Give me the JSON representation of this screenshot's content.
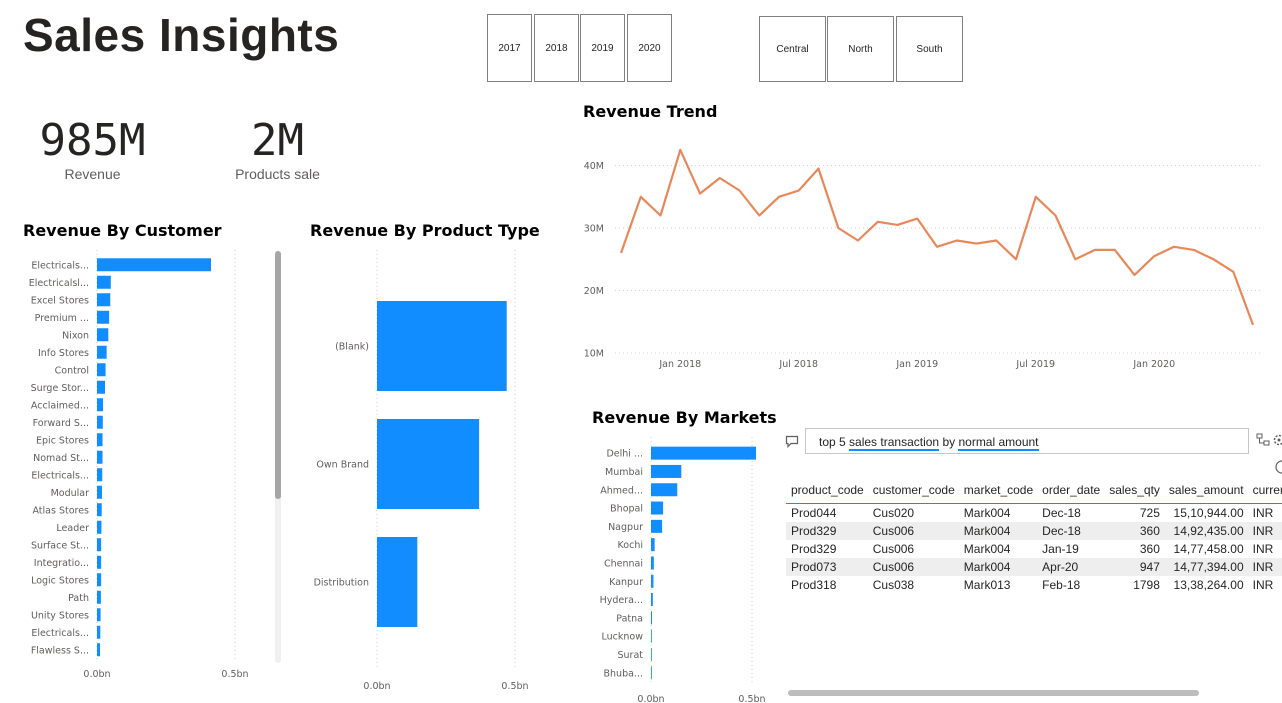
{
  "page_title": "Sales Insights",
  "year_slicer": [
    "2017",
    "2018",
    "2019",
    "2020"
  ],
  "region_slicer": [
    "Central",
    "North",
    "South"
  ],
  "kpis": [
    {
      "value": "985M",
      "label": "Revenue"
    },
    {
      "value": "2M",
      "label": "Products sale"
    }
  ],
  "colors": {
    "bar": "#118dff",
    "line": "#e8875a",
    "grid": "#d0d0d0"
  },
  "qa": {
    "parts": [
      "top 5",
      "sales transaction",
      "by",
      "normal amount"
    ],
    "icons": [
      "chat-icon",
      "share-icon",
      "settings-icon"
    ]
  },
  "table": {
    "headers": [
      "product_code",
      "customer_code",
      "market_code",
      "order_date",
      "sales_qty",
      "sales_amount",
      "currency"
    ],
    "rows": [
      [
        "Prod044",
        "Cus020",
        "Mark004",
        "Dec-18",
        "725",
        "15,10,944.00",
        "INR"
      ],
      [
        "Prod329",
        "Cus006",
        "Mark004",
        "Dec-18",
        "360",
        "14,92,435.00",
        "INR"
      ],
      [
        "Prod329",
        "Cus006",
        "Mark004",
        "Jan-19",
        "360",
        "14,77,458.00",
        "INR"
      ],
      [
        "Prod073",
        "Cus006",
        "Mark004",
        "Apr-20",
        "947",
        "14,77,394.00",
        "INR"
      ],
      [
        "Prod318",
        "Cus038",
        "Mark013",
        "Feb-18",
        "1798",
        "13,38,264.00",
        "INR"
      ]
    ]
  },
  "chart_data": [
    {
      "id": "customer",
      "type": "bar",
      "title": "Revenue By Customer",
      "orientation": "horizontal",
      "categories": [
        "Electricals...",
        "Electricalsl...",
        "Excel Stores",
        "Premium ...",
        "Nixon",
        "Info Stores",
        "Control",
        "Surge Stor...",
        "Acclaimed...",
        "Forward S...",
        "Epic Stores",
        "Nomad St...",
        "Electricals...",
        "Modular",
        "Atlas Stores",
        "Leader",
        "Surface St...",
        "Integratio...",
        "Logic Stores",
        "Path",
        "Unity Stores",
        "Electricals...",
        "Flawless S..."
      ],
      "values": [
        0.413,
        0.05,
        0.048,
        0.044,
        0.041,
        0.035,
        0.031,
        0.029,
        0.022,
        0.021,
        0.02,
        0.02,
        0.019,
        0.018,
        0.017,
        0.016,
        0.015,
        0.015,
        0.015,
        0.014,
        0.013,
        0.012,
        0.011
      ],
      "unit": "bn",
      "xlim": [
        0,
        0.5
      ],
      "ticks": [
        "0.0bn",
        "0.5bn"
      ],
      "grid": true
    },
    {
      "id": "product_type",
      "type": "bar",
      "title": "Revenue By Product Type",
      "orientation": "horizontal",
      "categories": [
        "(Blank)",
        "Own Brand",
        "Distribution"
      ],
      "values": [
        0.47,
        0.37,
        0.146
      ],
      "unit": "bn",
      "xlim": [
        0,
        0.5
      ],
      "ticks": [
        "0.0bn",
        "0.5bn"
      ],
      "grid": true
    },
    {
      "id": "markets",
      "type": "bar",
      "title": "Revenue By Markets",
      "orientation": "horizontal",
      "categories": [
        "Delhi ...",
        "Mumbai",
        "Ahmed...",
        "Bhopal",
        "Nagpur",
        "Kochi",
        "Chennai",
        "Kanpur",
        "Hydera...",
        "Patna",
        "Lucknow",
        "Surat",
        "Bhuba..."
      ],
      "values": [
        0.52,
        0.15,
        0.13,
        0.06,
        0.055,
        0.018,
        0.014,
        0.012,
        0.009,
        0.005,
        0.004,
        0.004,
        0.003
      ],
      "unit": "bn",
      "xlim": [
        0,
        0.5
      ],
      "ticks": [
        "0.0bn",
        "0.5bn"
      ],
      "grid": true
    },
    {
      "id": "trend",
      "type": "line",
      "title": "Revenue Trend",
      "x": [
        "2017-10",
        "2017-11",
        "2017-12",
        "2018-01",
        "2018-02",
        "2018-03",
        "2018-04",
        "2018-05",
        "2018-06",
        "2018-07",
        "2018-08",
        "2018-09",
        "2018-10",
        "2018-11",
        "2018-12",
        "2019-01",
        "2019-02",
        "2019-03",
        "2019-04",
        "2019-05",
        "2019-06",
        "2019-07",
        "2019-08",
        "2019-09",
        "2019-10",
        "2019-11",
        "2019-12",
        "2020-01",
        "2020-02",
        "2020-03",
        "2020-04",
        "2020-05",
        "2020-06"
      ],
      "values": [
        26,
        35,
        32,
        42.5,
        35.5,
        38,
        36,
        32,
        35,
        36,
        39.5,
        30,
        28,
        31,
        30.5,
        31.5,
        27,
        28,
        27.5,
        28,
        25,
        35,
        32,
        25,
        26.5,
        26.5,
        22.5,
        25.5,
        27,
        26.5,
        25,
        23,
        14.5
      ],
      "unit": "M",
      "ylim": [
        10,
        45
      ],
      "yticks": [
        "10M",
        "20M",
        "30M",
        "40M"
      ],
      "xticks": [
        "Jan 2018",
        "Jul 2018",
        "Jan 2019",
        "Jul 2019",
        "Jan 2020"
      ],
      "grid": true
    }
  ]
}
